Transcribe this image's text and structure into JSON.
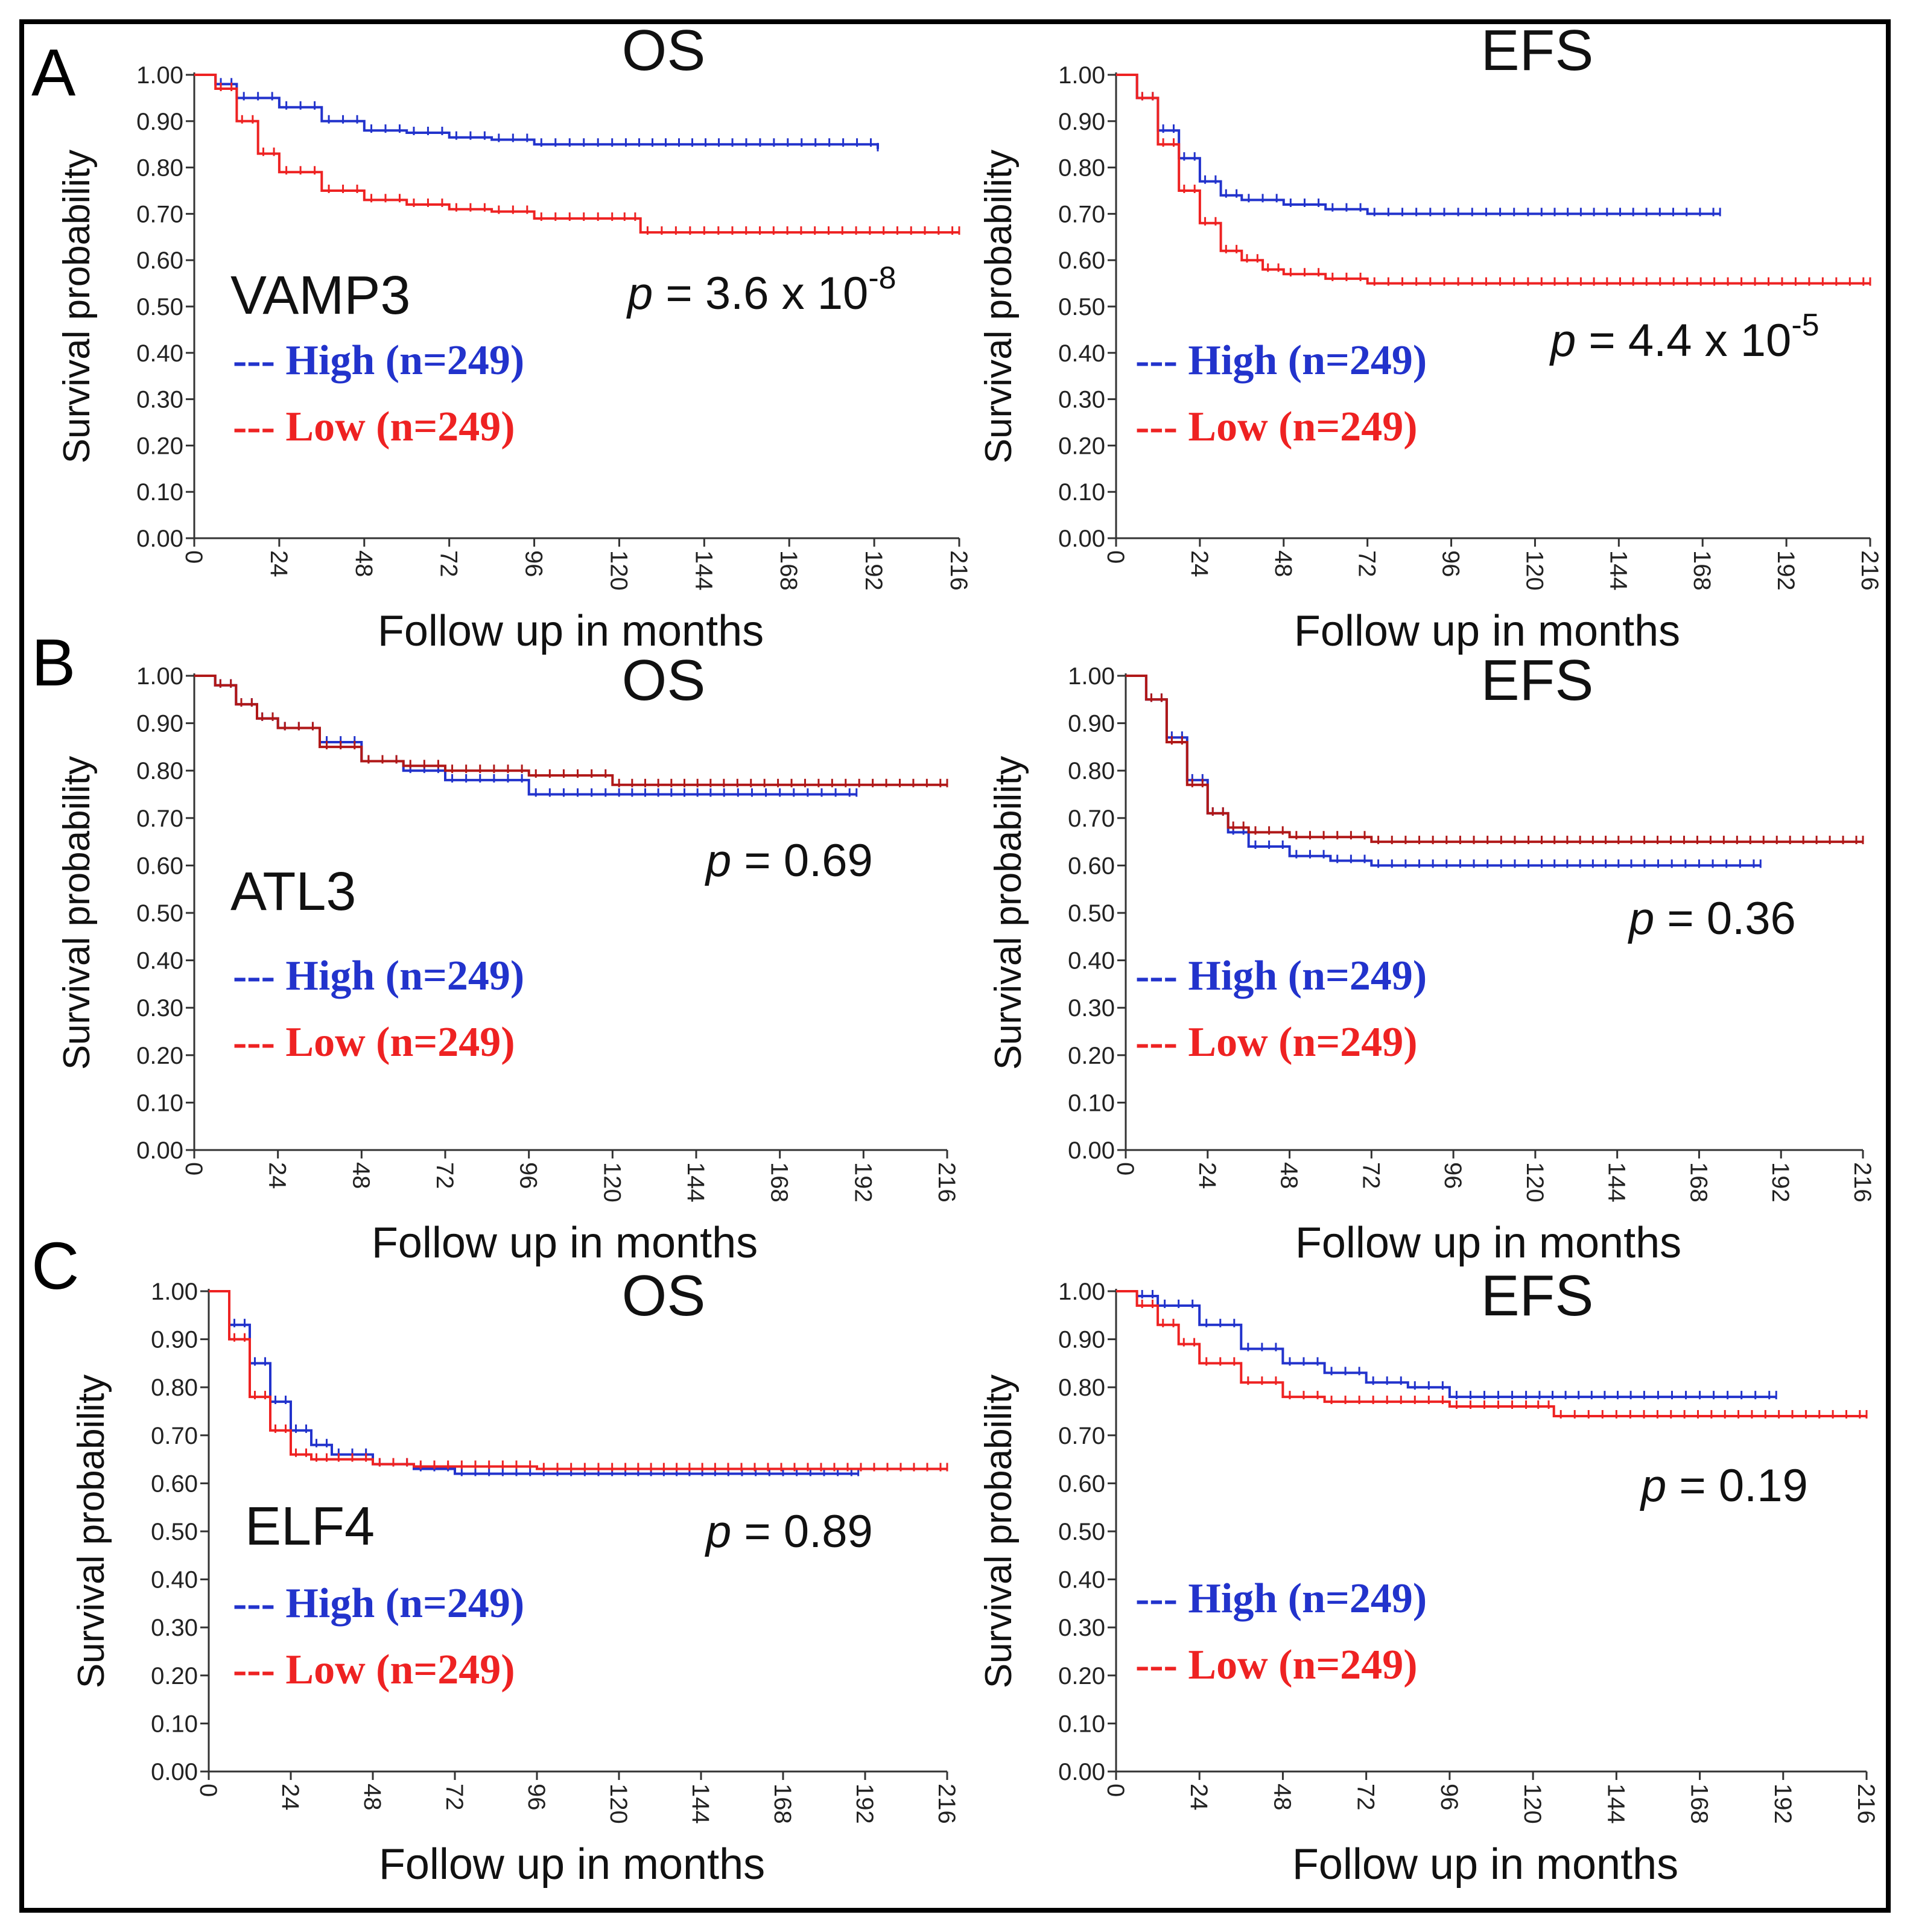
{
  "figure": {
    "frame_color": "#000000"
  },
  "styles": {
    "high_color": "#2233cc",
    "low_color": "#ee2222",
    "low_color_dark": "#b01818"
  },
  "chart_data": [
    {
      "panel_letter": "A",
      "type": "line",
      "title": "OS",
      "gene": "VAMP3",
      "p_text": "p = 3.6 x 10-8",
      "p_value": {
        "base": "3.6 x 10",
        "exp": "-8"
      },
      "xlabel": "Follow up in months",
      "ylabel": "Survival probability",
      "x_ticks": [
        "0",
        "24",
        "48",
        "72",
        "96",
        "120",
        "144",
        "168",
        "192",
        "216"
      ],
      "y_ticks": [
        "0.00",
        "0.10",
        "0.20",
        "0.30",
        "0.40",
        "0.50",
        "0.60",
        "0.70",
        "0.80",
        "0.90",
        "1.00"
      ],
      "xlim": [
        0,
        216
      ],
      "ylim": [
        0,
        1
      ],
      "legend": [
        "--- High (n=249)",
        "--- Low (n=249)"
      ],
      "series": [
        {
          "name": "High",
          "x": [
            0,
            6,
            12,
            24,
            36,
            48,
            60,
            72,
            84,
            96,
            120,
            150,
            193
          ],
          "y": [
            1,
            0.98,
            0.95,
            0.93,
            0.9,
            0.88,
            0.875,
            0.865,
            0.86,
            0.85,
            0.85,
            0.85,
            0.84
          ]
        },
        {
          "name": "Low",
          "x": [
            0,
            6,
            12,
            18,
            24,
            36,
            48,
            60,
            72,
            84,
            96,
            120,
            126,
            150,
            216
          ],
          "y": [
            1,
            0.97,
            0.9,
            0.83,
            0.79,
            0.75,
            0.73,
            0.72,
            0.71,
            0.705,
            0.69,
            0.69,
            0.66,
            0.66,
            0.66
          ]
        }
      ]
    },
    {
      "panel_letter": "",
      "type": "line",
      "title": "EFS",
      "gene": "",
      "p_text": "p = 4.4 x 10-5",
      "p_value": {
        "base": "4.4 x 10",
        "exp": "-5"
      },
      "xlabel": "Follow up in months",
      "ylabel": "Survival probability",
      "x_ticks": [
        "0",
        "24",
        "48",
        "72",
        "96",
        "120",
        "144",
        "168",
        "192",
        "216"
      ],
      "y_ticks": [
        "0.00",
        "0.10",
        "0.20",
        "0.30",
        "0.40",
        "0.50",
        "0.60",
        "0.70",
        "0.80",
        "0.90",
        "1.00"
      ],
      "xlim": [
        0,
        216
      ],
      "ylim": [
        0,
        1
      ],
      "legend": [
        "--- High (n=249)",
        "--- Low (n=249)"
      ],
      "series": [
        {
          "name": "High",
          "x": [
            0,
            6,
            12,
            18,
            24,
            30,
            36,
            48,
            60,
            72,
            96,
            120,
            150,
            173
          ],
          "y": [
            1,
            0.95,
            0.88,
            0.82,
            0.77,
            0.74,
            0.73,
            0.72,
            0.71,
            0.7,
            0.7,
            0.7,
            0.7,
            0.7
          ]
        },
        {
          "name": "Low",
          "x": [
            0,
            6,
            12,
            18,
            24,
            30,
            36,
            42,
            48,
            60,
            72,
            96,
            120,
            150,
            216
          ],
          "y": [
            1,
            0.95,
            0.85,
            0.75,
            0.68,
            0.62,
            0.6,
            0.58,
            0.57,
            0.56,
            0.55,
            0.55,
            0.55,
            0.55,
            0.55
          ]
        }
      ]
    },
    {
      "panel_letter": "B",
      "type": "line",
      "title": "OS",
      "gene": "ATL3",
      "p_text": "p = 0.69",
      "p_value": {
        "base": "0.69",
        "exp": ""
      },
      "xlabel": "Follow up in months",
      "ylabel": "Survival probability",
      "x_ticks": [
        "0",
        "24",
        "48",
        "72",
        "96",
        "120",
        "144",
        "168",
        "192",
        "216"
      ],
      "y_ticks": [
        "0.00",
        "0.10",
        "0.20",
        "0.30",
        "0.40",
        "0.50",
        "0.60",
        "0.70",
        "0.80",
        "0.90",
        "1.00"
      ],
      "xlim": [
        0,
        216
      ],
      "ylim": [
        0,
        1
      ],
      "legend": [
        "--- High (n=249)",
        "--- Low (n=249)"
      ],
      "series": [
        {
          "name": "High",
          "x": [
            0,
            6,
            12,
            18,
            24,
            36,
            48,
            60,
            72,
            96,
            120,
            150,
            190
          ],
          "y": [
            1,
            0.98,
            0.94,
            0.91,
            0.89,
            0.86,
            0.82,
            0.8,
            0.78,
            0.75,
            0.75,
            0.75,
            0.75
          ]
        },
        {
          "name": "Low",
          "x": [
            0,
            6,
            12,
            18,
            24,
            36,
            48,
            60,
            72,
            96,
            120,
            150,
            216
          ],
          "y": [
            1,
            0.98,
            0.94,
            0.91,
            0.89,
            0.85,
            0.82,
            0.81,
            0.8,
            0.79,
            0.77,
            0.77,
            0.77
          ]
        }
      ]
    },
    {
      "panel_letter": "",
      "type": "line",
      "title": "EFS",
      "gene": "",
      "p_text": "p = 0.36",
      "p_value": {
        "base": "0.36",
        "exp": ""
      },
      "xlabel": "Follow up in months",
      "ylabel": "Survival probability",
      "x_ticks": [
        "0",
        "24",
        "48",
        "72",
        "96",
        "120",
        "144",
        "168",
        "192",
        "216"
      ],
      "y_ticks": [
        "0.00",
        "0.10",
        "0.20",
        "0.30",
        "0.40",
        "0.50",
        "0.60",
        "0.70",
        "0.80",
        "0.90",
        "1.00"
      ],
      "xlim": [
        0,
        216
      ],
      "ylim": [
        0,
        1
      ],
      "legend": [
        "--- High (n=249)",
        "--- Low (n=249)"
      ],
      "series": [
        {
          "name": "High",
          "x": [
            0,
            6,
            12,
            18,
            24,
            30,
            36,
            48,
            60,
            72,
            96,
            120,
            150,
            186
          ],
          "y": [
            1,
            0.95,
            0.87,
            0.78,
            0.71,
            0.67,
            0.64,
            0.62,
            0.61,
            0.6,
            0.6,
            0.6,
            0.6,
            0.6
          ]
        },
        {
          "name": "Low",
          "x": [
            0,
            6,
            12,
            18,
            24,
            30,
            36,
            48,
            60,
            72,
            96,
            120,
            150,
            216
          ],
          "y": [
            1,
            0.95,
            0.86,
            0.77,
            0.71,
            0.68,
            0.67,
            0.66,
            0.66,
            0.65,
            0.65,
            0.65,
            0.65,
            0.65
          ]
        }
      ]
    },
    {
      "panel_letter": "C",
      "type": "line",
      "title": "OS",
      "gene": "ELF4",
      "p_text": "p = 0.89",
      "p_value": {
        "base": "0.89",
        "exp": ""
      },
      "xlabel": "Follow up in months",
      "ylabel": "Survival probability",
      "x_ticks": [
        "0",
        "24",
        "48",
        "72",
        "96",
        "120",
        "144",
        "168",
        "192",
        "216"
      ],
      "y_ticks": [
        "0.00",
        "0.10",
        "0.20",
        "0.30",
        "0.40",
        "0.50",
        "0.60",
        "0.70",
        "0.80",
        "0.90",
        "1.00"
      ],
      "xlim": [
        0,
        216
      ],
      "ylim": [
        0,
        1
      ],
      "legend": [
        "--- High (n=249)",
        "--- Low (n=249)"
      ],
      "series": [
        {
          "name": "High",
          "x": [
            0,
            6,
            12,
            18,
            24,
            30,
            36,
            48,
            60,
            72,
            96,
            120,
            150,
            190
          ],
          "y": [
            1,
            0.93,
            0.85,
            0.77,
            0.71,
            0.68,
            0.66,
            0.64,
            0.63,
            0.62,
            0.62,
            0.62,
            0.62,
            0.62
          ]
        },
        {
          "name": "Low",
          "x": [
            0,
            6,
            12,
            18,
            24,
            30,
            36,
            48,
            60,
            72,
            96,
            120,
            150,
            216
          ],
          "y": [
            1,
            0.9,
            0.78,
            0.71,
            0.66,
            0.65,
            0.65,
            0.64,
            0.635,
            0.635,
            0.63,
            0.63,
            0.63,
            0.63
          ]
        }
      ]
    },
    {
      "panel_letter": "",
      "type": "line",
      "title": "EFS",
      "gene": "",
      "p_text": "p = 0.19",
      "p_value": {
        "base": "0.19",
        "exp": ""
      },
      "xlabel": "Follow up in months",
      "ylabel": "Survival probability",
      "x_ticks": [
        "0",
        "24",
        "48",
        "72",
        "96",
        "120",
        "144",
        "168",
        "192",
        "216"
      ],
      "y_ticks": [
        "0.00",
        "0.10",
        "0.20",
        "0.30",
        "0.40",
        "0.50",
        "0.60",
        "0.70",
        "0.80",
        "0.90",
        "1.00"
      ],
      "xlim": [
        0,
        216
      ],
      "ylim": [
        0,
        1
      ],
      "legend": [
        "--- High (n=249)",
        "--- Low (n=249)"
      ],
      "series": [
        {
          "name": "High",
          "x": [
            0,
            6,
            12,
            24,
            36,
            48,
            60,
            72,
            84,
            96,
            120,
            150,
            190
          ],
          "y": [
            1,
            0.99,
            0.97,
            0.93,
            0.88,
            0.85,
            0.83,
            0.81,
            0.8,
            0.78,
            0.78,
            0.78,
            0.78
          ]
        },
        {
          "name": "Low",
          "x": [
            0,
            6,
            12,
            18,
            24,
            36,
            48,
            60,
            72,
            96,
            120,
            126,
            150,
            216
          ],
          "y": [
            1,
            0.97,
            0.93,
            0.89,
            0.85,
            0.81,
            0.78,
            0.77,
            0.77,
            0.76,
            0.76,
            0.74,
            0.74,
            0.74
          ]
        }
      ]
    }
  ]
}
